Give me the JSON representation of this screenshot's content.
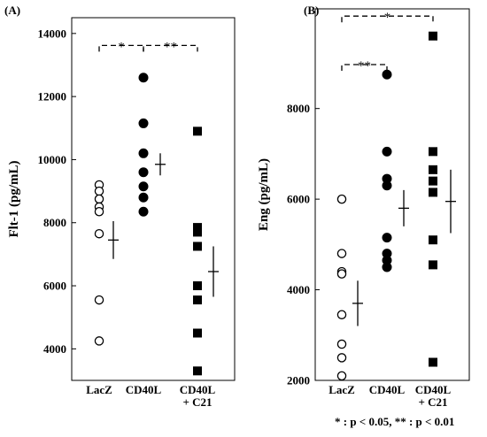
{
  "chart_data": [
    {
      "type": "scatter",
      "panel_label": "(A)",
      "ylabel": "Flt-1 (pg/mL)",
      "xlabel": "",
      "ylim": [
        3000,
        14500
      ],
      "yticks": [
        4000,
        6000,
        8000,
        10000,
        12000,
        14000
      ],
      "grid": false,
      "categories": [
        {
          "lines": [
            "LacZ"
          ]
        },
        {
          "lines": [
            "CD40L"
          ]
        },
        {
          "lines": [
            "CD40L",
            "+ C21"
          ]
        }
      ],
      "series": [
        {
          "category": 0,
          "marker": "open-circle",
          "color": "#000000",
          "values": [
            9200,
            9000,
            8750,
            8500,
            8350,
            7650,
            5550,
            4250
          ],
          "mean": 7450,
          "error": 600
        },
        {
          "category": 1,
          "marker": "filled-circle",
          "color": "#000000",
          "values": [
            12600,
            11150,
            10200,
            9600,
            9150,
            8800,
            8350
          ],
          "mean": 9850,
          "error": 350
        },
        {
          "category": 2,
          "marker": "filled-square",
          "color": "#000000",
          "values": [
            10900,
            7850,
            7700,
            7250,
            6000,
            5550,
            4500,
            3300
          ],
          "mean": 6450,
          "error": 800
        }
      ],
      "significance": [
        {
          "from": 0,
          "to": 1,
          "label": "*",
          "y": 13620
        },
        {
          "from": 1,
          "to": 2,
          "label": "**",
          "y": 13620
        }
      ]
    },
    {
      "type": "scatter",
      "panel_label": "(B)",
      "ylabel": "Eng (pg/mL)",
      "xlabel": "",
      "ylim": [
        2000,
        10200
      ],
      "yticks": [
        2000,
        4000,
        6000,
        8000
      ],
      "grid": false,
      "categories": [
        {
          "lines": [
            "LacZ"
          ]
        },
        {
          "lines": [
            "CD40L"
          ]
        },
        {
          "lines": [
            "CD40L",
            "+ C21"
          ]
        }
      ],
      "series": [
        {
          "category": 0,
          "marker": "open-circle",
          "color": "#000000",
          "values": [
            6000,
            4800,
            4400,
            4350,
            3450,
            2800,
            2500,
            2100
          ],
          "mean": 3700,
          "error": 500
        },
        {
          "category": 1,
          "marker": "filled-circle",
          "color": "#000000",
          "values": [
            8750,
            7050,
            6450,
            6300,
            5150,
            4800,
            4650,
            4500
          ],
          "mean": 5800,
          "error": 400
        },
        {
          "category": 2,
          "marker": "filled-square",
          "color": "#000000",
          "values": [
            9600,
            7050,
            6650,
            6400,
            6150,
            5100,
            4550,
            2400
          ],
          "mean": 5950,
          "error": 700
        }
      ],
      "significance": [
        {
          "from": 0,
          "to": 2,
          "label": "*",
          "y": 10040
        },
        {
          "from": 0,
          "to": 1,
          "label": "**",
          "y": 8970
        }
      ]
    }
  ],
  "footnote": "* : p < 0.05, ** : p < 0.01"
}
